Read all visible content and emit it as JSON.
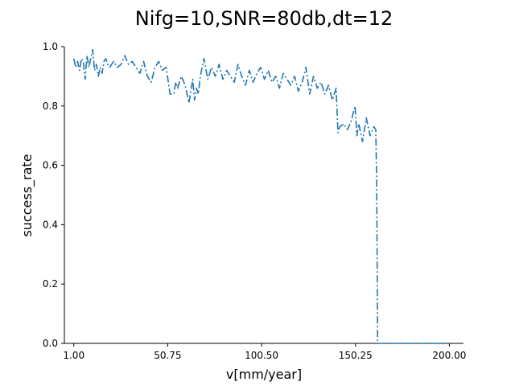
{
  "colors": {
    "series": "#1f77b4"
  },
  "chart_data": {
    "type": "line",
    "title": "Nifg=10,SNR=80db,dt=12",
    "xlabel": "v[mm/year]",
    "ylabel": "success_rate",
    "xlim": [
      -4,
      207.5
    ],
    "ylim": [
      0,
      1.0
    ],
    "xticks": [
      1.0,
      50.75,
      100.5,
      150.25,
      200.0
    ],
    "xtick_labels": [
      "1.00",
      "50.75",
      "100.50",
      "150.25",
      "200.00"
    ],
    "yticks": [
      0.0,
      0.2,
      0.4,
      0.6,
      0.8,
      1.0
    ],
    "ytick_labels": [
      "0.0",
      "0.2",
      "0.4",
      "0.6",
      "0.8",
      "1.0"
    ],
    "grid": false,
    "series": [
      {
        "x": [
          1,
          2,
          3,
          4,
          5,
          6,
          7,
          8,
          9,
          10,
          11,
          12,
          13,
          14,
          15,
          16,
          17,
          18,
          19,
          20,
          22,
          24,
          26,
          28,
          30,
          32,
          34,
          36,
          38,
          40,
          42,
          44,
          46,
          48,
          50,
          52,
          54,
          55,
          56,
          58,
          60,
          62,
          63,
          64,
          65,
          66,
          67,
          68,
          69,
          70,
          72,
          74,
          76,
          78,
          80,
          82,
          84,
          86,
          88,
          90,
          92,
          94,
          96,
          98,
          100,
          102,
          104,
          106,
          108,
          110,
          112,
          114,
          116,
          118,
          120,
          122,
          124,
          126,
          128,
          130,
          132,
          134,
          136,
          138,
          140,
          141,
          142,
          144,
          146,
          148,
          150,
          151,
          152,
          154,
          156,
          158,
          160,
          161,
          161.5,
          162,
          163,
          170,
          180,
          190,
          200
        ],
        "y": [
          0.96,
          0.93,
          0.95,
          0.92,
          0.96,
          0.95,
          0.89,
          0.97,
          0.93,
          0.96,
          0.99,
          0.92,
          0.94,
          0.9,
          0.93,
          0.91,
          0.95,
          0.96,
          0.94,
          0.93,
          0.95,
          0.93,
          0.94,
          0.97,
          0.94,
          0.95,
          0.93,
          0.91,
          0.95,
          0.9,
          0.88,
          0.93,
          0.95,
          0.92,
          0.93,
          0.84,
          0.84,
          0.88,
          0.86,
          0.9,
          0.87,
          0.81,
          0.85,
          0.89,
          0.82,
          0.86,
          0.84,
          0.9,
          0.93,
          0.96,
          0.89,
          0.93,
          0.9,
          0.94,
          0.89,
          0.92,
          0.9,
          0.88,
          0.94,
          0.9,
          0.87,
          0.92,
          0.88,
          0.91,
          0.93,
          0.89,
          0.92,
          0.88,
          0.9,
          0.86,
          0.91,
          0.89,
          0.87,
          0.9,
          0.85,
          0.88,
          0.93,
          0.84,
          0.9,
          0.86,
          0.88,
          0.84,
          0.87,
          0.82,
          0.86,
          0.71,
          0.73,
          0.74,
          0.72,
          0.75,
          0.8,
          0.7,
          0.74,
          0.68,
          0.76,
          0.7,
          0.73,
          0.72,
          0.55,
          0.0,
          0.0,
          0.0,
          0.0,
          0.0,
          0.0
        ]
      }
    ]
  }
}
